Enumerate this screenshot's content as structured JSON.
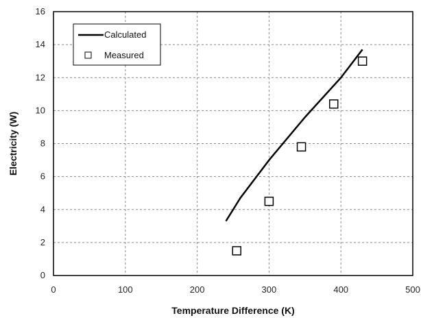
{
  "chart_data": {
    "type": "line",
    "xlabel": "Temperature Difference (K)",
    "ylabel": "Electricity (W)",
    "xlim": [
      0,
      500
    ],
    "ylim": [
      0,
      16
    ],
    "xticks": [
      0,
      100,
      200,
      300,
      400,
      500
    ],
    "yticks": [
      0,
      2,
      4,
      6,
      8,
      10,
      12,
      14,
      16
    ],
    "grid": true,
    "legend_position": "top-left",
    "series": [
      {
        "name": "Calculated",
        "kind": "line",
        "color": "#000000",
        "points": [
          {
            "x": 240,
            "y": 3.3
          },
          {
            "x": 260,
            "y": 4.7
          },
          {
            "x": 300,
            "y": 7.0
          },
          {
            "x": 350,
            "y": 9.6
          },
          {
            "x": 400,
            "y": 12.0
          },
          {
            "x": 430,
            "y": 13.7
          }
        ]
      },
      {
        "name": "Measured",
        "kind": "marker",
        "marker": "square",
        "color": "#000000",
        "points": [
          {
            "x": 255,
            "y": 1.5
          },
          {
            "x": 300,
            "y": 4.5
          },
          {
            "x": 345,
            "y": 7.8
          },
          {
            "x": 390,
            "y": 10.4
          },
          {
            "x": 430,
            "y": 13.0
          }
        ]
      }
    ]
  }
}
